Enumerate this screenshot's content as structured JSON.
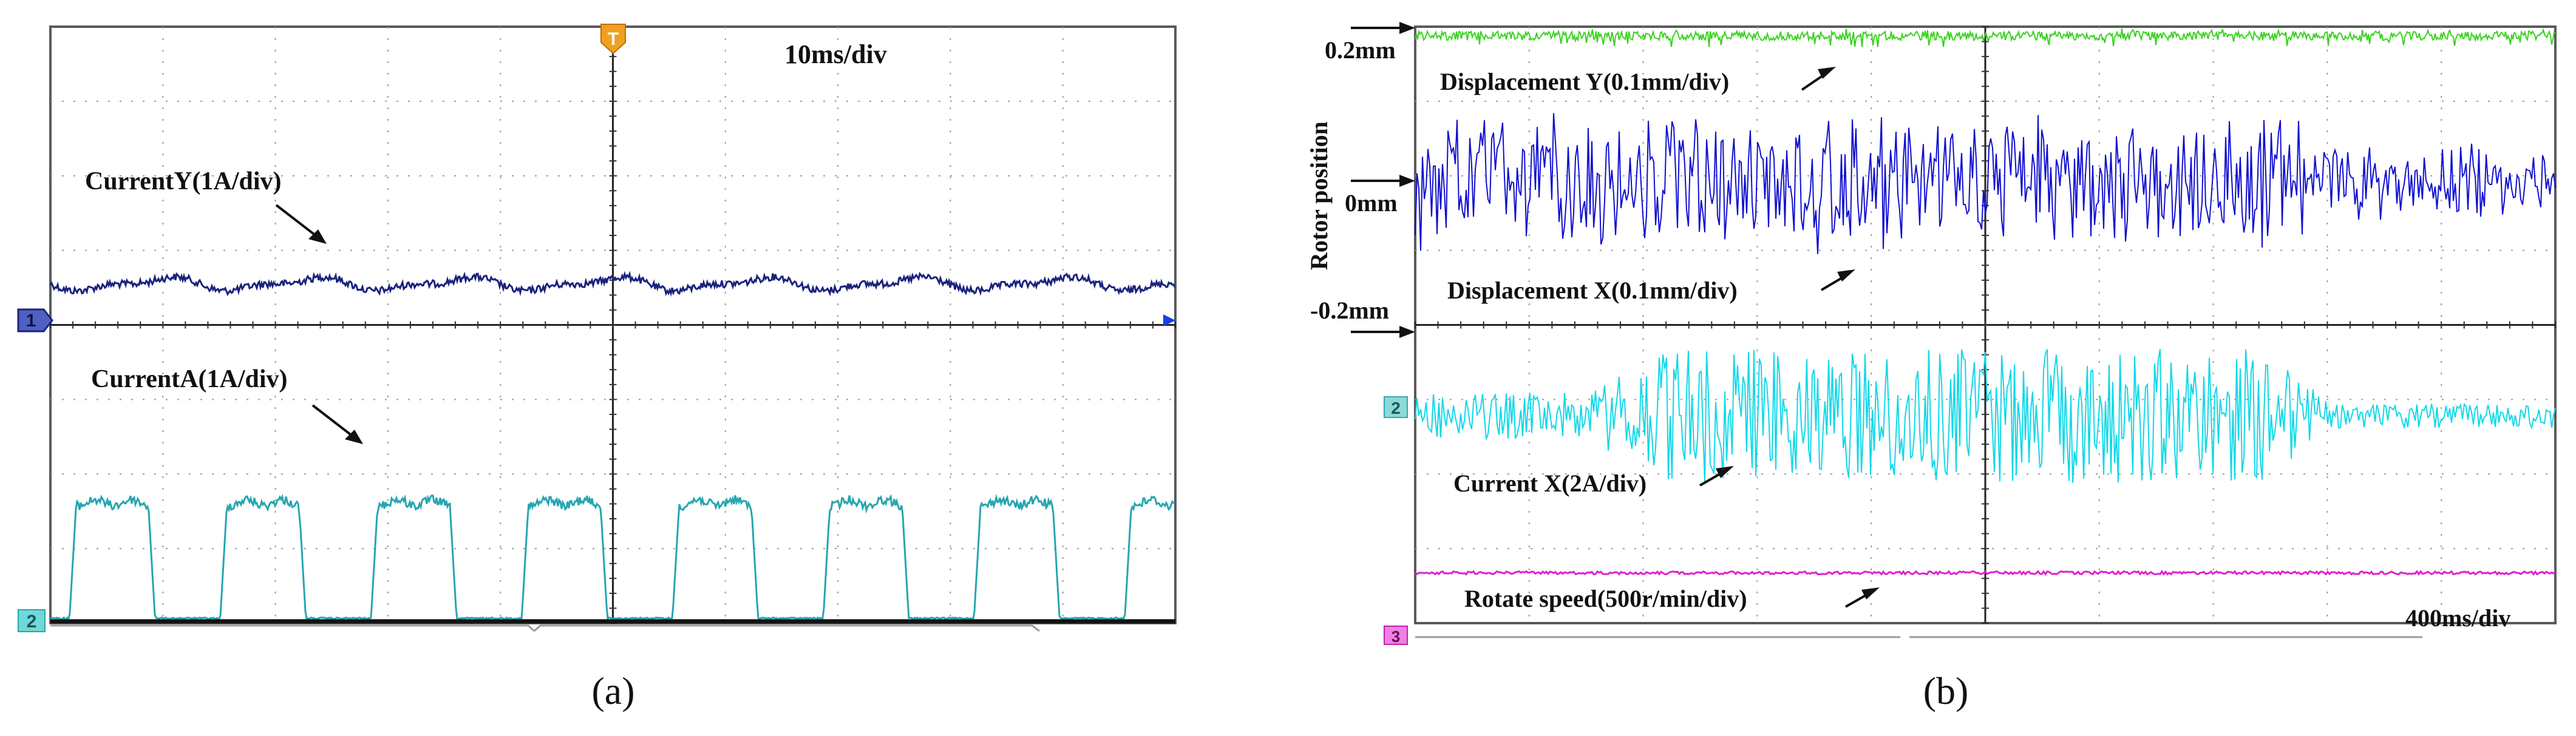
{
  "chart_data": [
    {
      "type": "line",
      "panel_label": "(a)",
      "time_scale": "10ms/div",
      "trigger_marker": "T",
      "divisions": {
        "x": 10,
        "y": 8
      },
      "channels": [
        {
          "marker": "1",
          "color": "#1a237e",
          "annotation": "CurrentY(1A/div)",
          "shape": "small ripple around channel-1 baseline",
          "ripple_period_div": 1.33,
          "ripple_amplitude_div": 0.12,
          "offset_div": 0.55
        },
        {
          "marker": "2",
          "color": "#26a6b0",
          "annotation": "CurrentA(1A/div)",
          "shape": "square pulses",
          "pulse_period_div": 1.34,
          "pulse_width_div": 0.7,
          "pulse_high_div": 1.55,
          "low_div": 0.0
        }
      ]
    },
    {
      "type": "line",
      "panel_label": "(b)",
      "time_scale": "400ms/div",
      "y_axis_label": "Rotor position",
      "divisions": {
        "x": 10,
        "y": 8
      },
      "position_ticks": [
        "0.2mm",
        "0mm",
        "-0.2mm"
      ],
      "channels": [
        {
          "color": "#39d21f",
          "annotation": "Displacement Y(0.1mm/div)",
          "shape": "noise band near 0.2mm line",
          "amplitude_div": 0.12
        },
        {
          "color": "#1010d0",
          "annotation": "Displacement X(0.1mm/div)",
          "shape": "large oscillation around 0mm",
          "amplitude_div": 1.0
        },
        {
          "marker": "2",
          "color": "#10d8e8",
          "annotation": "Current X(2A/div)",
          "shape": "oscillation burst, grows then decays",
          "amplitude_div": 0.9
        },
        {
          "marker": "3",
          "color": "#e020d0",
          "annotation": "Rotate speed(500r/min/div)",
          "shape": "flat line",
          "amplitude_div": 0.02
        }
      ]
    }
  ]
}
